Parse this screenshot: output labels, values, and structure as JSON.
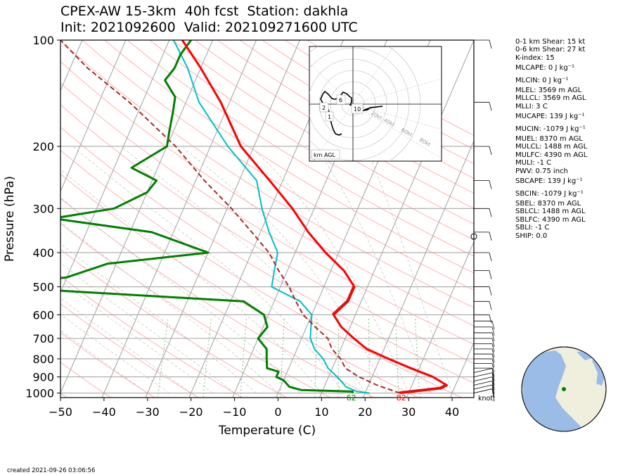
{
  "title": {
    "line1": "CPEX-AW 15-3km  40h fcst  Station: dakhla",
    "line2": "Init: 2021092600  Valid: 202109271600 UTC"
  },
  "chart_data": {
    "type": "line",
    "subtype": "skew-T log-P diagram",
    "xlabel": "Temperature (C)",
    "ylabel": "Pressure (hPa)",
    "xlim": [
      -50,
      45
    ],
    "ylim": [
      1030,
      100
    ],
    "y_scale": "log",
    "x_ticks": [
      -50,
      -40,
      -30,
      -20,
      -10,
      0,
      10,
      20,
      30,
      40
    ],
    "x_tick_labels": [
      "−50",
      "−40",
      "−30",
      "−20",
      "−10",
      "0",
      "10",
      "20",
      "30",
      "40"
    ],
    "y_ticks": [
      100,
      200,
      300,
      400,
      500,
      600,
      700,
      800,
      900,
      1000
    ],
    "y_tick_labels": [
      "100",
      "200",
      "300",
      "400",
      "500",
      "600",
      "700",
      "800",
      "900",
      "1000"
    ],
    "grid": true,
    "surface_labels": {
      "dewpoint": "62",
      "temperature": "82"
    },
    "colors": {
      "temperature": "#ff0000",
      "temperature_shadow": "#b22222",
      "dewpoint": "#008000",
      "wetbulb": "#00bfc4",
      "parcel": "#a52a2a",
      "dry_adiabat": "#ffb2b2",
      "moist_adiabat": "#bfbfbf",
      "mixing_ratio": "#7fbf7f"
    },
    "series": [
      {
        "key": "temperature",
        "points": [
          [
            28,
            1000
          ],
          [
            31,
            990
          ],
          [
            37,
            970
          ],
          [
            38,
            950
          ],
          [
            34,
            900
          ],
          [
            28,
            850
          ],
          [
            22,
            800
          ],
          [
            16,
            750
          ],
          [
            12,
            700
          ],
          [
            8,
            650
          ],
          [
            5,
            600
          ],
          [
            7,
            550
          ],
          [
            7,
            500
          ],
          [
            3,
            450
          ],
          [
            -3,
            400
          ],
          [
            -9,
            350
          ],
          [
            -15,
            300
          ],
          [
            -23,
            250
          ],
          [
            -33,
            200
          ],
          [
            -42,
            150
          ],
          [
            -50,
            120
          ],
          [
            -57,
            100
          ]
        ]
      },
      {
        "key": "wetbulb",
        "points": [
          [
            21,
            1000
          ],
          [
            18,
            990
          ],
          [
            15,
            960
          ],
          [
            12,
            900
          ],
          [
            9,
            850
          ],
          [
            7,
            800
          ],
          [
            4,
            750
          ],
          [
            2,
            700
          ],
          [
            1,
            650
          ],
          [
            0,
            600
          ],
          [
            -4,
            550
          ],
          [
            -12,
            500
          ],
          [
            -13,
            450
          ],
          [
            -14,
            400
          ],
          [
            -18,
            350
          ],
          [
            -22,
            300
          ],
          [
            -26,
            250
          ],
          [
            -36,
            200
          ],
          [
            -47,
            150
          ],
          [
            -53,
            120
          ],
          [
            -59,
            100
          ]
        ]
      },
      {
        "key": "dewpoint",
        "points": [
          [
            17,
            1000
          ],
          [
            17,
            990
          ],
          [
            5,
            980
          ],
          [
            2,
            960
          ],
          [
            0,
            920
          ],
          [
            -2,
            900
          ],
          [
            -2,
            870
          ],
          [
            -5,
            850
          ],
          [
            -6,
            800
          ],
          [
            -7,
            750
          ],
          [
            -10,
            700
          ],
          [
            -9,
            650
          ],
          [
            -11,
            600
          ],
          [
            -17,
            550
          ],
          [
            -76,
            500
          ],
          [
            -60,
            470
          ],
          [
            -52,
            430
          ],
          [
            -30,
            400
          ],
          [
            -45,
            350
          ],
          [
            -69,
            320
          ],
          [
            -56,
            300
          ],
          [
            -50,
            270
          ],
          [
            -49,
            250
          ],
          [
            -56,
            230
          ],
          [
            -50,
            200
          ],
          [
            -51,
            180
          ],
          [
            -52,
            160
          ],
          [
            -53,
            145
          ],
          [
            -57,
            130
          ],
          [
            -56,
            120
          ],
          [
            -56,
            110
          ],
          [
            -55,
            100
          ]
        ]
      },
      {
        "key": "parcel",
        "points": [
          [
            28,
            1000
          ],
          [
            22,
            950
          ],
          [
            17,
            900
          ],
          [
            13,
            850
          ],
          [
            11,
            800
          ],
          [
            8,
            750
          ],
          [
            6,
            700
          ],
          [
            2,
            650
          ],
          [
            -2,
            600
          ],
          [
            -5,
            550
          ],
          [
            -8,
            500
          ],
          [
            -12,
            450
          ],
          [
            -16,
            400
          ],
          [
            -22,
            350
          ],
          [
            -29,
            300
          ],
          [
            -38,
            250
          ],
          [
            -48,
            200
          ],
          [
            -63,
            150
          ],
          [
            -76,
            120
          ],
          [
            -85,
            100
          ]
        ]
      }
    ],
    "hodograph": {
      "labels": [
        "2",
        "6",
        "1",
        "10"
      ],
      "ring_labels": [
        "20kt",
        "40kt",
        "60kt",
        "80kt"
      ],
      "box_label": "km AGL"
    },
    "wind_unit_label": "knot"
  },
  "stats": [
    "0-1 km Shear: 15 kt",
    "0-6 km Shear: 27 kt",
    "K-index: 15",
    "MLCAPE: 0 J kg⁻¹",
    "MLCIN: 0 J kg⁻¹",
    "MLEL: 3569 m AGL",
    "MLLCL: 3569 m AGL",
    "MLLI: 3 C",
    "MUCAPE: 139 J kg⁻¹",
    "MUCIN: -1079 J kg⁻¹",
    "MUEL: 8370 m AGL",
    "MULCL: 1488 m AGL",
    "MULFC: 4390 m AGL",
    "MULI: -1 C",
    "PWV: 0.75 inch",
    "SBCAPE: 139 J kg⁻¹",
    "SBCIN: -1079 J kg⁻¹",
    "SBEL: 8370 m AGL",
    "SBLCL: 1488 m AGL",
    "SBLFC: 4390 m AGL",
    "SBLI: -1 C",
    "SHIP: 0.0"
  ],
  "footer": "created 2021-09-26 03:06:56"
}
